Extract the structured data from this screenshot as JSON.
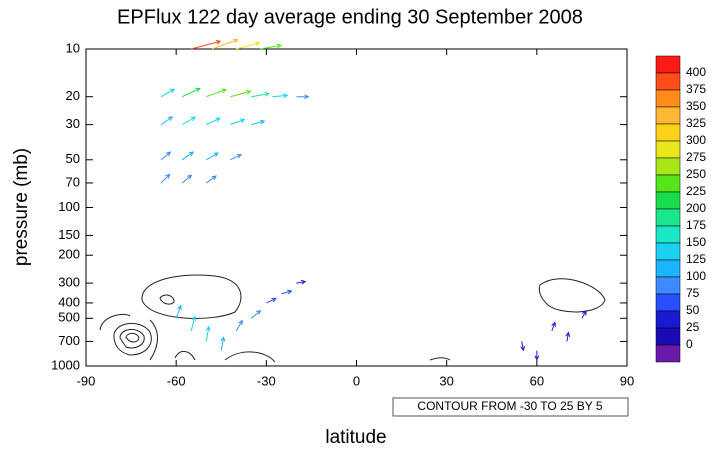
{
  "chart_data": {
    "type": "vector",
    "title": "EPFlux  122 day average ending  30 September 2008",
    "x_label": "latitude",
    "y_label": "pressure (mb)",
    "note": "CONTOUR FROM -30 TO 25 BY 5",
    "xlim": [
      -90,
      90
    ],
    "xticks": [
      -90,
      -60,
      -30,
      0,
      30,
      60,
      90
    ],
    "ylim": [
      1000,
      10
    ],
    "log_y": true,
    "yticks": [
      10,
      20,
      30,
      50,
      70,
      100,
      150,
      200,
      300,
      400,
      500,
      700,
      1000
    ],
    "colorbar": {
      "ticks": [
        400,
        375,
        350,
        325,
        300,
        275,
        250,
        225,
        200,
        175,
        150,
        125,
        100,
        75,
        50,
        25,
        0
      ],
      "colors": [
        "#ff1a1a",
        "#ff4d1a",
        "#ff8c1a",
        "#ffb833",
        "#ffd21a",
        "#e6e61a",
        "#a8e61a",
        "#55e61a",
        "#1adb4a",
        "#1ae68c",
        "#1ae6c8",
        "#1ad2f0",
        "#1ab4ff",
        "#3c8cff",
        "#2850ff",
        "#1a1ad2",
        "#1a0ab4",
        "#6a1aa8"
      ]
    },
    "vectors": {
      "lat": [
        -55,
        -48,
        -40,
        -32,
        -65,
        -58,
        -50,
        -42,
        -35,
        -28,
        -20,
        -65,
        -58,
        -50,
        -42,
        -35,
        -65,
        -58,
        -50,
        -42,
        -65,
        -58,
        -50,
        -60,
        -55,
        -50,
        -45,
        -40,
        -35,
        -30,
        -25,
        -20,
        55,
        60,
        65,
        70,
        75
      ],
      "p": [
        10,
        10,
        10,
        10,
        20,
        20,
        20,
        20,
        20,
        20,
        20,
        30,
        30,
        30,
        30,
        30,
        50,
        50,
        50,
        50,
        70,
        70,
        70,
        500,
        600,
        700,
        800,
        600,
        500,
        400,
        350,
        300,
        700,
        800,
        600,
        700,
        500
      ],
      "magnitude": [
        400,
        350,
        300,
        250,
        150,
        225,
        250,
        250,
        200,
        150,
        100,
        125,
        150,
        150,
        150,
        125,
        100,
        125,
        125,
        100,
        100,
        100,
        100,
        125,
        150,
        150,
        125,
        100,
        100,
        75,
        75,
        50,
        50,
        50,
        50,
        50,
        40
      ],
      "angle": [
        15,
        20,
        15,
        10,
        30,
        25,
        20,
        15,
        10,
        5,
        0,
        35,
        30,
        25,
        20,
        15,
        40,
        35,
        30,
        25,
        45,
        40,
        35,
        70,
        75,
        80,
        80,
        60,
        40,
        25,
        15,
        10,
        -80,
        -90,
        70,
        80,
        60
      ]
    }
  }
}
